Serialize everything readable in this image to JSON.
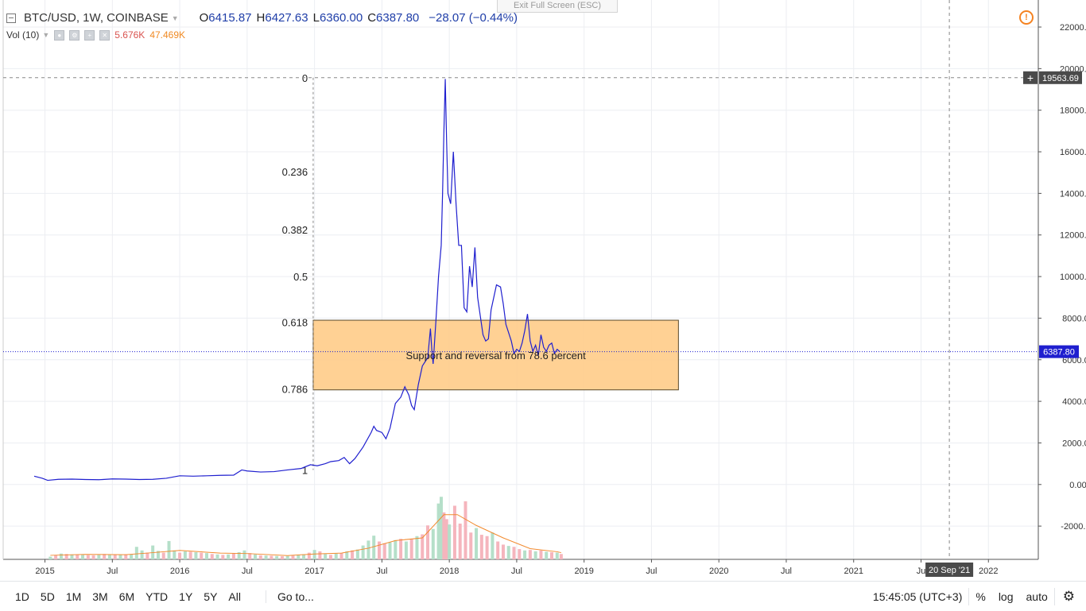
{
  "header": {
    "symbol": "BTC/USD, 1W, COINBASE",
    "open_label": "O",
    "open": "6415.87",
    "high_label": "H",
    "high": "6427.63",
    "low_label": "L",
    "low": "6360.00",
    "close_label": "C",
    "close": "6387.80",
    "change": "−28.07 (−0.44%)"
  },
  "volume_legend": {
    "label": "Vol (10)",
    "value1": "5.676K",
    "value2": "47.469K"
  },
  "exit_fullscreen": "Exit Full Screen (ESC)",
  "alert_icon": "!",
  "chart_data": {
    "type": "line",
    "x_ticks": [
      "2015",
      "Jul",
      "2016",
      "Jul",
      "2017",
      "Jul",
      "2018",
      "Jul",
      "2019",
      "Jul",
      "2020",
      "Jul",
      "2021",
      "Ju",
      "2022"
    ],
    "y_ticks": [
      22000,
      20000,
      18000,
      16000,
      14000,
      12000,
      10000,
      8000,
      6000,
      4000,
      2000,
      0,
      -2000
    ],
    "y_tick_labels": [
      "22000.00",
      "20000.00",
      "18000.00",
      "16000.00",
      "14000.00",
      "12000.00",
      "10000.00",
      "8000.00",
      "6000.00",
      "4000.00",
      "2000.00",
      "0.00",
      "-2000.00"
    ],
    "ylim": [
      -3600,
      23300
    ],
    "xlim": [
      2014.69,
      2022.37
    ],
    "series": [
      {
        "color": "#1f1fcf",
        "points": [
          [
            2014.92,
            400
          ],
          [
            2014.98,
            300
          ],
          [
            2015.02,
            200
          ],
          [
            2015.1,
            250
          ],
          [
            2015.2,
            260
          ],
          [
            2015.3,
            240
          ],
          [
            2015.4,
            230
          ],
          [
            2015.5,
            270
          ],
          [
            2015.6,
            260
          ],
          [
            2015.7,
            240
          ],
          [
            2015.8,
            250
          ],
          [
            2015.9,
            300
          ],
          [
            2016.0,
            420
          ],
          [
            2016.1,
            400
          ],
          [
            2016.2,
            420
          ],
          [
            2016.3,
            440
          ],
          [
            2016.4,
            450
          ],
          [
            2016.46,
            700
          ],
          [
            2016.5,
            650
          ],
          [
            2016.6,
            600
          ],
          [
            2016.7,
            620
          ],
          [
            2016.8,
            700
          ],
          [
            2016.9,
            770
          ],
          [
            2016.97,
            950
          ],
          [
            2017.02,
            900
          ],
          [
            2017.08,
            1000
          ],
          [
            2017.12,
            1100
          ],
          [
            2017.18,
            1150
          ],
          [
            2017.22,
            1300
          ],
          [
            2017.26,
            1000
          ],
          [
            2017.3,
            1250
          ],
          [
            2017.36,
            1800
          ],
          [
            2017.42,
            2500
          ],
          [
            2017.44,
            2800
          ],
          [
            2017.46,
            2600
          ],
          [
            2017.5,
            2500
          ],
          [
            2017.53,
            2200
          ],
          [
            2017.56,
            2700
          ],
          [
            2017.6,
            3900
          ],
          [
            2017.64,
            4200
          ],
          [
            2017.67,
            4700
          ],
          [
            2017.7,
            4300
          ],
          [
            2017.72,
            3800
          ],
          [
            2017.74,
            3600
          ],
          [
            2017.77,
            4800
          ],
          [
            2017.8,
            5700
          ],
          [
            2017.82,
            5900
          ],
          [
            2017.84,
            6100
          ],
          [
            2017.86,
            7500
          ],
          [
            2017.87,
            6500
          ],
          [
            2017.88,
            5800
          ],
          [
            2017.9,
            7800
          ],
          [
            2017.92,
            10000
          ],
          [
            2017.94,
            11500
          ],
          [
            2017.95,
            14000
          ],
          [
            2017.96,
            17000
          ],
          [
            2017.97,
            19500
          ],
          [
            2017.98,
            16500
          ],
          [
            2017.99,
            14000
          ],
          [
            2018.01,
            13500
          ],
          [
            2018.03,
            16000
          ],
          [
            2018.05,
            13500
          ],
          [
            2018.07,
            11500
          ],
          [
            2018.09,
            11500
          ],
          [
            2018.1,
            10000
          ],
          [
            2018.11,
            8500
          ],
          [
            2018.13,
            8300
          ],
          [
            2018.15,
            10500
          ],
          [
            2018.17,
            9500
          ],
          [
            2018.19,
            11400
          ],
          [
            2018.21,
            9000
          ],
          [
            2018.23,
            8100
          ],
          [
            2018.25,
            7200
          ],
          [
            2018.27,
            6900
          ],
          [
            2018.29,
            7000
          ],
          [
            2018.31,
            8400
          ],
          [
            2018.33,
            9000
          ],
          [
            2018.35,
            9600
          ],
          [
            2018.38,
            9500
          ],
          [
            2018.4,
            8700
          ],
          [
            2018.42,
            7700
          ],
          [
            2018.44,
            7300
          ],
          [
            2018.46,
            6900
          ],
          [
            2018.48,
            6300
          ],
          [
            2018.5,
            6500
          ],
          [
            2018.52,
            6400
          ],
          [
            2018.54,
            6800
          ],
          [
            2018.56,
            7400
          ],
          [
            2018.58,
            8200
          ],
          [
            2018.6,
            6900
          ],
          [
            2018.62,
            6400
          ],
          [
            2018.64,
            6700
          ],
          [
            2018.66,
            6200
          ],
          [
            2018.68,
            7200
          ],
          [
            2018.7,
            6600
          ],
          [
            2018.72,
            6400
          ],
          [
            2018.74,
            6700
          ],
          [
            2018.76,
            6800
          ],
          [
            2018.78,
            6300
          ],
          [
            2018.8,
            6500
          ],
          [
            2018.82,
            6387.8
          ]
        ]
      }
    ],
    "current_price": 6387.8,
    "current_price_label": "6387.80",
    "crosshair_price": 19563.69,
    "crosshair_price_label": "19563.69",
    "crosshair_date_label": "20 Sep '21",
    "fib_levels": [
      {
        "label": "0",
        "value": 19563.69
      },
      {
        "label": "0.236",
        "value": 15050
      },
      {
        "label": "0.382",
        "value": 12250
      },
      {
        "label": "0.5",
        "value": 10000
      },
      {
        "label": "0.618",
        "value": 7800
      },
      {
        "label": "0.786",
        "value": 4600
      },
      {
        "label": "1",
        "value": 700
      }
    ],
    "annotation": {
      "text": "Support and reversal from 78.6 percent",
      "x0": 2016.99,
      "x1": 2019.7,
      "y0": 4550,
      "y1": 7900,
      "fill": "#ffcc88",
      "stroke": "#5a4a2a"
    },
    "volume": {
      "colors": {
        "up": "#b5dfc9",
        "down": "#f5b5bd",
        "ma": "#f28a2e"
      },
      "ylim": [
        0,
        3200000
      ],
      "bars": [
        [
          2015.04,
          60000,
          1
        ],
        [
          2015.08,
          95000,
          0
        ],
        [
          2015.12,
          130000,
          1
        ],
        [
          2015.16,
          120000,
          0
        ],
        [
          2015.2,
          110000,
          1
        ],
        [
          2015.24,
          105000,
          0
        ],
        [
          2015.28,
          100000,
          1
        ],
        [
          2015.32,
          95000,
          0
        ],
        [
          2015.36,
          90000,
          0
        ],
        [
          2015.4,
          100000,
          1
        ],
        [
          2015.44,
          120000,
          0
        ],
        [
          2015.48,
          110000,
          1
        ],
        [
          2015.52,
          100000,
          0
        ],
        [
          2015.56,
          105000,
          1
        ],
        [
          2015.6,
          115000,
          0
        ],
        [
          2015.64,
          110000,
          1
        ],
        [
          2015.68,
          280000,
          1
        ],
        [
          2015.72,
          200000,
          1
        ],
        [
          2015.76,
          150000,
          0
        ],
        [
          2015.8,
          310000,
          1
        ],
        [
          2015.84,
          190000,
          1
        ],
        [
          2015.88,
          150000,
          0
        ],
        [
          2015.92,
          410000,
          1
        ],
        [
          2015.96,
          200000,
          1
        ],
        [
          2016.0,
          150000,
          0
        ],
        [
          2016.04,
          180000,
          1
        ],
        [
          2016.08,
          170000,
          0
        ],
        [
          2016.12,
          160000,
          1
        ],
        [
          2016.16,
          150000,
          0
        ],
        [
          2016.2,
          140000,
          1
        ],
        [
          2016.24,
          120000,
          0
        ],
        [
          2016.28,
          110000,
          1
        ],
        [
          2016.32,
          100000,
          0
        ],
        [
          2016.36,
          110000,
          1
        ],
        [
          2016.4,
          140000,
          0
        ],
        [
          2016.44,
          160000,
          1
        ],
        [
          2016.48,
          200000,
          1
        ],
        [
          2016.52,
          140000,
          0
        ],
        [
          2016.56,
          110000,
          1
        ],
        [
          2016.6,
          90000,
          0
        ],
        [
          2016.64,
          85000,
          1
        ],
        [
          2016.68,
          80000,
          0
        ],
        [
          2016.72,
          75000,
          1
        ],
        [
          2016.76,
          70000,
          0
        ],
        [
          2016.8,
          75000,
          1
        ],
        [
          2016.84,
          85000,
          0
        ],
        [
          2016.88,
          95000,
          1
        ],
        [
          2016.92,
          110000,
          1
        ],
        [
          2016.96,
          150000,
          0
        ],
        [
          2017.0,
          210000,
          1
        ],
        [
          2017.04,
          180000,
          0
        ],
        [
          2017.08,
          120000,
          1
        ],
        [
          2017.12,
          100000,
          0
        ],
        [
          2017.16,
          130000,
          1
        ],
        [
          2017.2,
          140000,
          0
        ],
        [
          2017.24,
          180000,
          1
        ],
        [
          2017.28,
          200000,
          0
        ],
        [
          2017.32,
          220000,
          1
        ],
        [
          2017.36,
          310000,
          1
        ],
        [
          2017.4,
          420000,
          1
        ],
        [
          2017.44,
          530000,
          1
        ],
        [
          2017.48,
          400000,
          0
        ],
        [
          2017.52,
          360000,
          0
        ],
        [
          2017.56,
          380000,
          1
        ],
        [
          2017.6,
          430000,
          1
        ],
        [
          2017.64,
          460000,
          0
        ],
        [
          2017.68,
          400000,
          1
        ],
        [
          2017.72,
          450000,
          0
        ],
        [
          2017.76,
          520000,
          1
        ],
        [
          2017.8,
          560000,
          0
        ],
        [
          2017.84,
          760000,
          0
        ],
        [
          2017.88,
          680000,
          1
        ],
        [
          2017.92,
          1250000,
          1
        ],
        [
          2017.94,
          1400000,
          1
        ],
        [
          2017.96,
          1050000,
          0
        ],
        [
          2017.98,
          900000,
          0
        ],
        [
          2018.0,
          780000,
          1
        ],
        [
          2018.04,
          1200000,
          0
        ],
        [
          2018.08,
          800000,
          0
        ],
        [
          2018.12,
          1300000,
          0
        ],
        [
          2018.16,
          600000,
          0
        ],
        [
          2018.2,
          700000,
          1
        ],
        [
          2018.24,
          550000,
          0
        ],
        [
          2018.28,
          520000,
          0
        ],
        [
          2018.32,
          600000,
          1
        ],
        [
          2018.36,
          400000,
          0
        ],
        [
          2018.4,
          330000,
          0
        ],
        [
          2018.44,
          300000,
          1
        ],
        [
          2018.48,
          280000,
          0
        ],
        [
          2018.52,
          230000,
          0
        ],
        [
          2018.56,
          200000,
          1
        ],
        [
          2018.6,
          210000,
          0
        ],
        [
          2018.64,
          180000,
          1
        ],
        [
          2018.68,
          200000,
          0
        ],
        [
          2018.72,
          170000,
          1
        ],
        [
          2018.76,
          160000,
          0
        ],
        [
          2018.8,
          150000,
          1
        ],
        [
          2018.83,
          120000,
          0
        ]
      ],
      "ma": [
        [
          2015.04,
          90000
        ],
        [
          2015.3,
          110000
        ],
        [
          2015.6,
          105000
        ],
        [
          2015.8,
          150000
        ],
        [
          2016.0,
          200000
        ],
        [
          2016.3,
          140000
        ],
        [
          2016.5,
          130000
        ],
        [
          2016.8,
          85000
        ],
        [
          2017.0,
          120000
        ],
        [
          2017.2,
          140000
        ],
        [
          2017.4,
          250000
        ],
        [
          2017.6,
          420000
        ],
        [
          2017.8,
          480000
        ],
        [
          2017.96,
          1000000
        ],
        [
          2018.06,
          1000000
        ],
        [
          2018.2,
          760000
        ],
        [
          2018.4,
          480000
        ],
        [
          2018.6,
          240000
        ],
        [
          2018.8,
          170000
        ],
        [
          2018.83,
          150000
        ]
      ]
    }
  },
  "time_range_buttons": [
    "1D",
    "5D",
    "1M",
    "3M",
    "6M",
    "YTD",
    "1Y",
    "5Y",
    "All"
  ],
  "goto_label": "Go to...",
  "clock": "15:45:05 (UTC+3)",
  "percent_label": "%",
  "log_label": "log",
  "auto_label": "auto"
}
